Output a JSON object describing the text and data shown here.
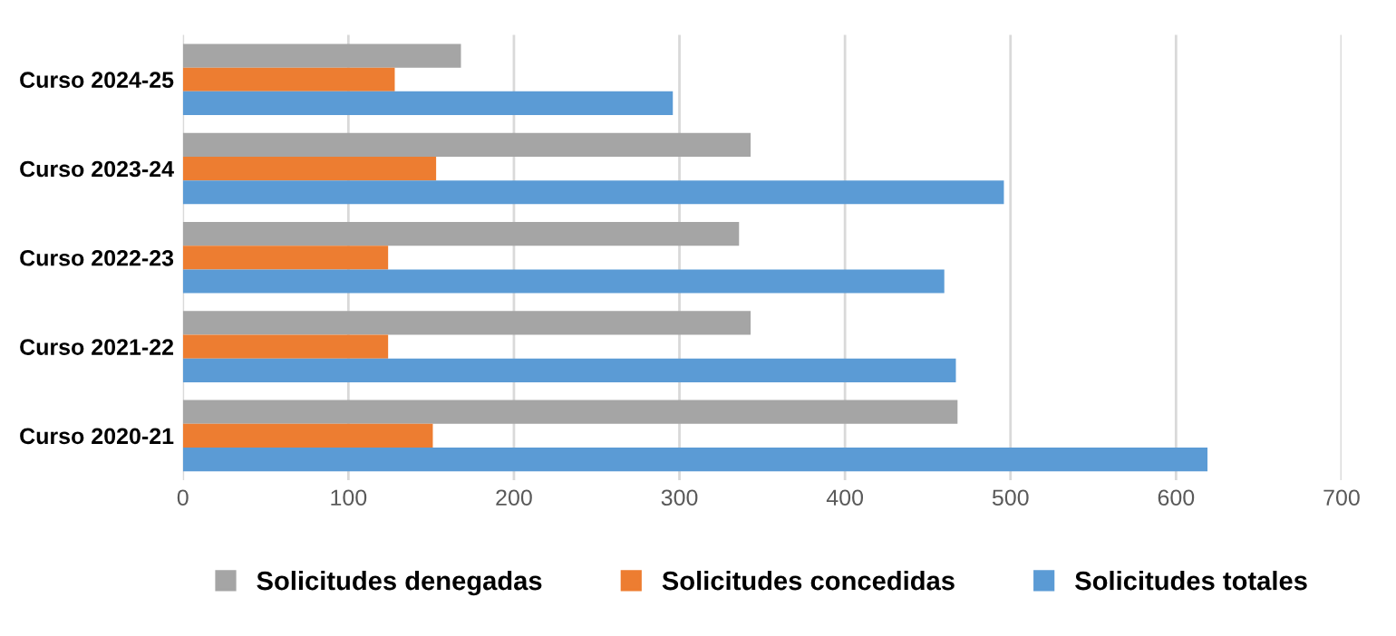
{
  "chart_data": {
    "type": "bar",
    "orientation": "horizontal",
    "categories": [
      "Curso 2024-25",
      "Curso 2023-24",
      "Curso 2022-23",
      "Curso 2021-22",
      "Curso 2020-21"
    ],
    "series": [
      {
        "name": "Solicitudes denegadas",
        "color": "#a5a5a5",
        "values": [
          168,
          343,
          336,
          343,
          468
        ]
      },
      {
        "name": "Solicitudes concedidas",
        "color": "#ed7d31",
        "values": [
          128,
          153,
          124,
          124,
          151
        ]
      },
      {
        "name": "Solicitudes totales",
        "color": "#5b9bd5",
        "values": [
          296,
          496,
          460,
          467,
          619
        ]
      }
    ],
    "xlim": [
      0,
      700
    ],
    "xticks": [
      0,
      100,
      200,
      300,
      400,
      500,
      600,
      700
    ],
    "grid": "x",
    "legend": "bottom"
  }
}
